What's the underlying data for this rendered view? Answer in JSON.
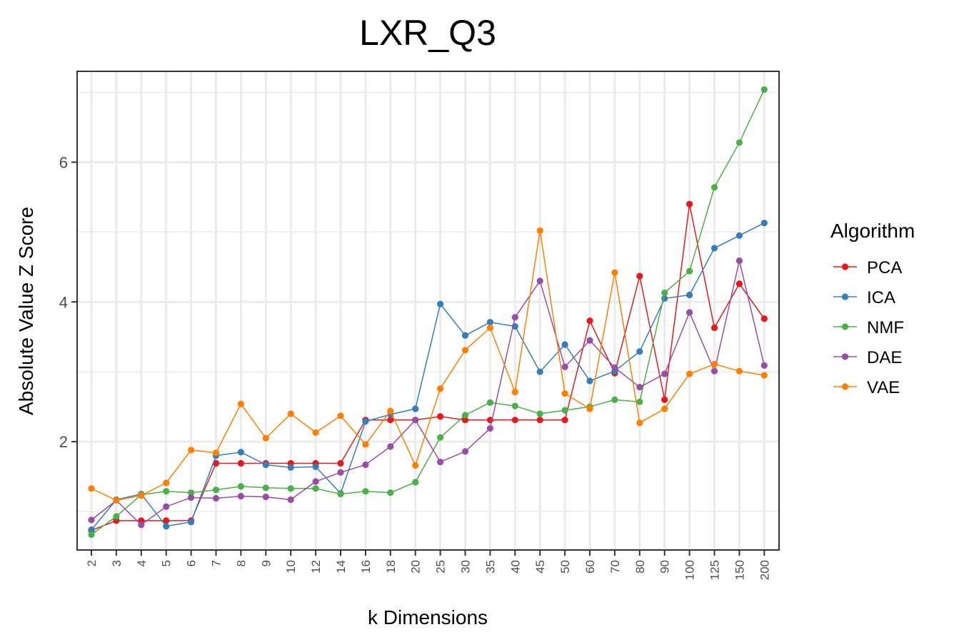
{
  "chart_data": {
    "type": "line",
    "title": "LXR_Q3",
    "xlabel": "k Dimensions",
    "ylabel": "Absolute Value Z Score",
    "categories": [
      "2",
      "3",
      "4",
      "5",
      "6",
      "7",
      "8",
      "9",
      "10",
      "12",
      "14",
      "16",
      "18",
      "20",
      "25",
      "30",
      "35",
      "40",
      "45",
      "50",
      "60",
      "70",
      "80",
      "90",
      "100",
      "125",
      "150",
      "200"
    ],
    "yticks": [
      "2",
      "4",
      "6"
    ],
    "ylim": [
      0.45,
      7.3
    ],
    "grid": true,
    "legend": {
      "title": "Algorithm",
      "position": "right"
    },
    "series": [
      {
        "name": "PCA",
        "color": "#E41A1C",
        "values": [
          0.73,
          0.87,
          0.87,
          0.87,
          0.87,
          1.69,
          1.69,
          1.69,
          1.69,
          1.69,
          1.69,
          2.31,
          2.31,
          2.31,
          2.36,
          2.31,
          2.31,
          2.31,
          2.31,
          2.31,
          3.73,
          2.98,
          4.37,
          2.6,
          5.4,
          3.63,
          4.26,
          3.76
        ]
      },
      {
        "name": "ICA",
        "color": "#377EB8",
        "values": [
          0.74,
          1.17,
          1.25,
          0.79,
          0.85,
          1.8,
          1.85,
          1.67,
          1.63,
          1.64,
          1.26,
          2.29,
          2.39,
          2.47,
          3.97,
          3.52,
          3.71,
          3.65,
          3.0,
          3.39,
          2.87,
          3.01,
          3.29,
          4.05,
          4.1,
          4.77,
          4.95,
          5.13
        ]
      },
      {
        "name": "NMF",
        "color": "#4DAF4A",
        "values": [
          0.67,
          0.93,
          1.24,
          1.29,
          1.27,
          1.31,
          1.36,
          1.34,
          1.33,
          1.33,
          1.25,
          1.29,
          1.27,
          1.42,
          2.06,
          2.38,
          2.56,
          2.51,
          2.4,
          2.45,
          2.5,
          2.6,
          2.57,
          4.13,
          4.44,
          5.64,
          6.28,
          7.04
        ]
      },
      {
        "name": "DAE",
        "color": "#984EA3",
        "values": [
          0.88,
          1.16,
          0.81,
          1.07,
          1.2,
          1.19,
          1.22,
          1.21,
          1.17,
          1.43,
          1.56,
          1.67,
          1.93,
          2.31,
          1.71,
          1.86,
          2.19,
          3.78,
          4.3,
          3.07,
          3.45,
          3.06,
          2.78,
          2.97,
          3.85,
          3.01,
          4.59,
          3.09
        ]
      },
      {
        "name": "VAE",
        "color": "#FF7F00",
        "values": [
          1.33,
          1.16,
          1.23,
          1.41,
          1.88,
          1.84,
          2.54,
          2.05,
          2.4,
          2.13,
          2.37,
          1.96,
          2.44,
          1.66,
          2.76,
          3.31,
          3.63,
          2.71,
          5.02,
          2.69,
          2.47,
          4.42,
          2.27,
          2.47,
          2.97,
          3.11,
          3.01,
          2.95
        ]
      }
    ]
  }
}
